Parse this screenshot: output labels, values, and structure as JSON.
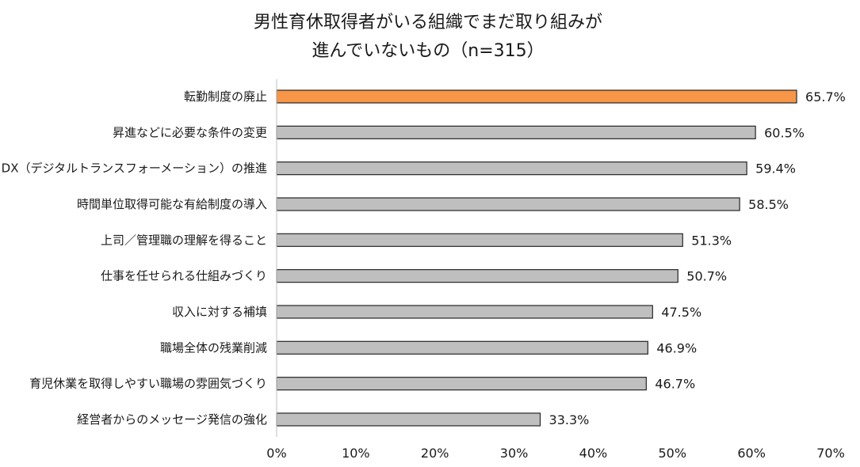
{
  "chart_data": {
    "type": "bar",
    "orientation": "horizontal",
    "title_lines": [
      "男性育休取得者がいる組織でまだ取り組みが",
      "進んでいないもの（n=315）"
    ],
    "categories": [
      "転勤制度の廃止",
      "昇進などに必要な条件の変更",
      "DX（デジタルトランスフォーメーション）の推進",
      "時間単位取得可能な有給制度の導入",
      "上司／管理職の理解を得ること",
      "仕事を任せられる仕組みづくり",
      "収入に対する補填",
      "職場全体の残業削減",
      "育児休業を取得しやすい職場の雰囲気づくり",
      "経営者からのメッセージ発信の強化"
    ],
    "values": [
      65.7,
      60.5,
      59.4,
      58.5,
      51.3,
      50.7,
      47.5,
      46.9,
      46.7,
      33.3
    ],
    "value_labels": [
      "65.7%",
      "60.5%",
      "59.4%",
      "58.5%",
      "51.3%",
      "50.7%",
      "47.5%",
      "46.9%",
      "46.7%",
      "33.3%"
    ],
    "xlim": [
      0,
      70
    ],
    "x_ticks": [
      0,
      10,
      20,
      30,
      40,
      50,
      60,
      70
    ],
    "x_tick_labels": [
      "0%",
      "10%",
      "20%",
      "30%",
      "40%",
      "50%",
      "60%",
      "70%"
    ],
    "grid": false,
    "legend": "none",
    "highlight_index": 0,
    "colors": {
      "highlight": "#F79646",
      "bar": "#BFBFBF",
      "bar_stroke": "#262626",
      "axis": "#BFBFBF"
    }
  }
}
